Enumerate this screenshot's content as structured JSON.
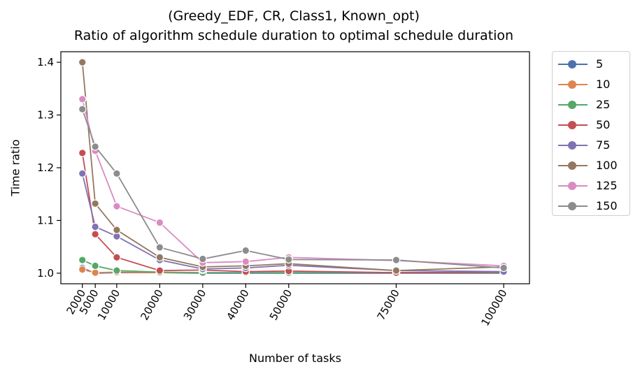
{
  "chart_data": {
    "type": "line",
    "title_line1": "(Greedy_EDF, CR, Class1, Known_opt)",
    "title_line2": "Ratio of algorithm schedule duration to optimal schedule duration",
    "xlabel": "Number of tasks",
    "ylabel": "Time ratio",
    "x": [
      2000,
      5000,
      10000,
      20000,
      30000,
      40000,
      50000,
      75000,
      100000
    ],
    "x_tick_labels": [
      "2000",
      "5000",
      "10000",
      "20000",
      "30000",
      "40000",
      "50000",
      "75000",
      "100000"
    ],
    "xlim": [
      -3000,
      106000
    ],
    "ylim": [
      0.98,
      1.42
    ],
    "y_ticks": [
      1.0,
      1.1,
      1.2,
      1.3,
      1.4
    ],
    "y_tick_labels": [
      "1.0",
      "1.1",
      "1.2",
      "1.3",
      "1.4"
    ],
    "grid": false,
    "legend_position": "outside-right",
    "series": [
      {
        "name": "5",
        "color": "#4c72b0",
        "values": [
          1.01,
          1.0,
          1.001,
          1.001,
          1.0,
          1.0,
          1.0,
          1.0,
          1.0
        ]
      },
      {
        "name": "10",
        "color": "#dd8452",
        "values": [
          1.007,
          1.001,
          1.002,
          1.001,
          1.001,
          1.001,
          1.001,
          1.001,
          1.001
        ]
      },
      {
        "name": "25",
        "color": "#55a868",
        "values": [
          1.025,
          1.014,
          1.005,
          1.002,
          1.001,
          1.001,
          1.001,
          1.001,
          1.001
        ]
      },
      {
        "name": "50",
        "color": "#c44e52",
        "values": [
          1.228,
          1.074,
          1.03,
          1.005,
          1.006,
          1.003,
          1.004,
          1.001,
          1.002
        ]
      },
      {
        "name": "75",
        "color": "#8172b3",
        "values": [
          1.189,
          1.088,
          1.07,
          1.025,
          1.008,
          1.01,
          1.015,
          1.005,
          1.003
        ]
      },
      {
        "name": "100",
        "color": "#937860",
        "values": [
          1.4,
          1.132,
          1.082,
          1.03,
          1.012,
          1.014,
          1.018,
          1.005,
          1.012
        ]
      },
      {
        "name": "125",
        "color": "#da8bc3",
        "values": [
          1.33,
          1.232,
          1.127,
          1.096,
          1.02,
          1.022,
          1.03,
          1.024,
          1.014
        ]
      },
      {
        "name": "150",
        "color": "#8c8c8c",
        "values": [
          1.311,
          1.24,
          1.189,
          1.049,
          1.027,
          1.043,
          1.026,
          1.025,
          1.01
        ]
      }
    ]
  }
}
